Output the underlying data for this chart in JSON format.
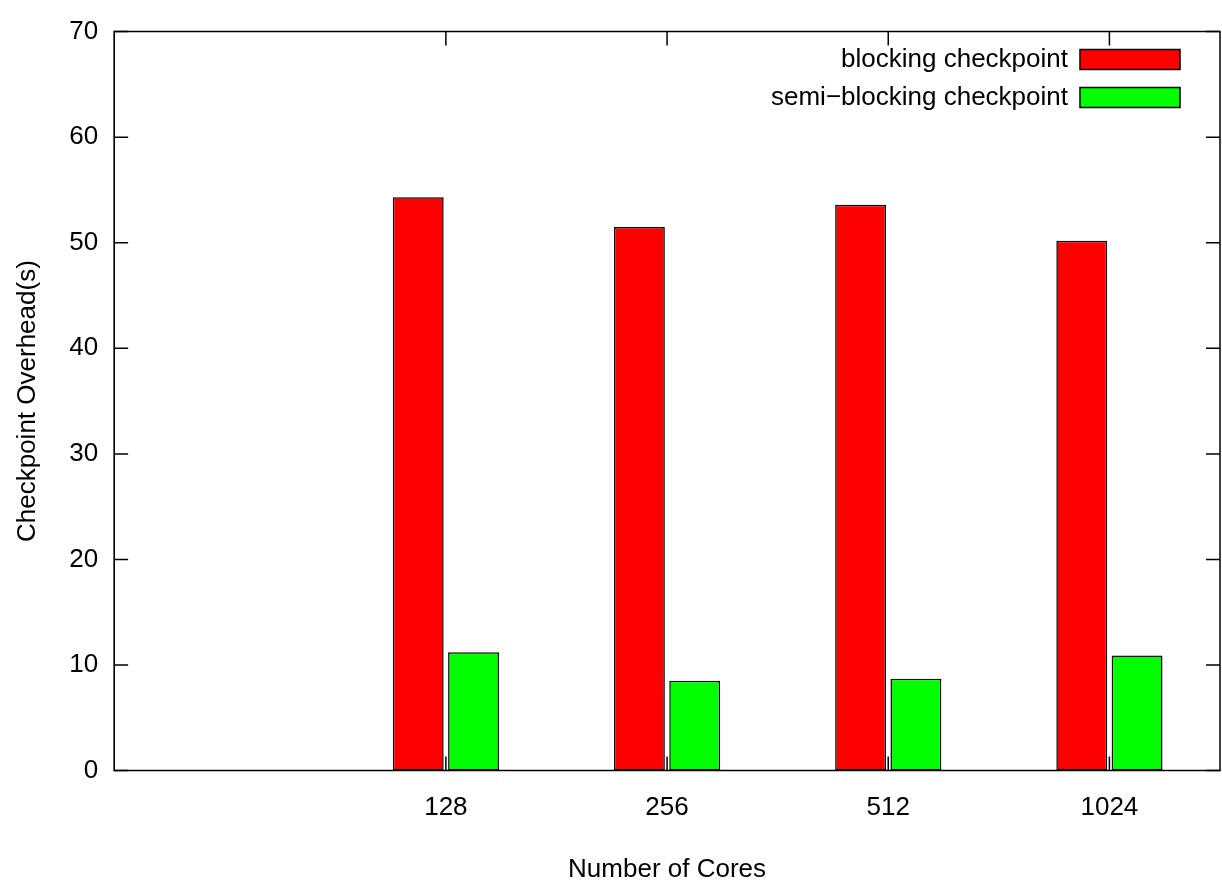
{
  "chart_data": {
    "type": "bar",
    "xlabel": "Number of Cores",
    "ylabel": "Checkpoint Overhead(s)",
    "categories": [
      null,
      "128",
      "256",
      "512",
      "1024"
    ],
    "series": [
      {
        "name": "blocking checkpoint",
        "color": "#ff0000",
        "values": [
          null,
          54.3,
          51.5,
          53.6,
          50.2
        ]
      },
      {
        "name": "semi−blocking checkpoint",
        "color": "#00ff00",
        "values": [
          null,
          11.2,
          8.5,
          8.7,
          10.9
        ]
      }
    ],
    "ylim": [
      0,
      70
    ],
    "yticks": [
      0,
      10,
      20,
      30,
      40,
      50,
      60,
      70
    ],
    "grid": false,
    "legend": "top right"
  }
}
